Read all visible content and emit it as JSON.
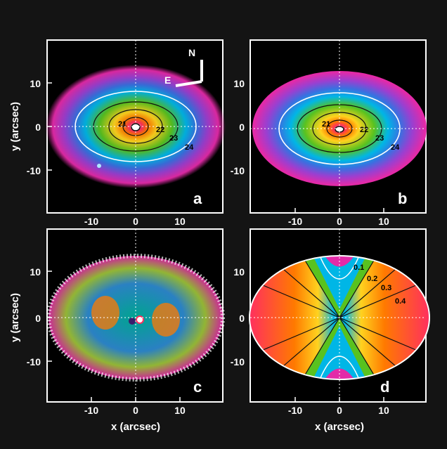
{
  "figure": {
    "x_axis_label": "x (arcsec)",
    "y_axis_label": "y (arcsec)",
    "tick_labels": [
      "-10",
      "0",
      "10"
    ],
    "compass": {
      "north": "N",
      "east": "E"
    },
    "colors": {
      "background": "#141414",
      "panel": "#000000",
      "text": "#ffffff",
      "contour_line": "#111111",
      "contour_white": "#ffffff",
      "crosshair": "#ffffff",
      "palette": [
        "#ff2f5f",
        "#ff7a00",
        "#ffd21f",
        "#59c21f",
        "#009a7a",
        "#00b6e6",
        "#3b6fe0",
        "#9b3fd0",
        "#e32aa8"
      ]
    },
    "panels": [
      {
        "id": "a",
        "letter": "a",
        "show_y_ticks": true,
        "show_x_ticks": false,
        "contour_labels": [
          "21",
          "22",
          "23",
          "24"
        ]
      },
      {
        "id": "b",
        "letter": "b",
        "show_y_ticks": false,
        "show_x_ticks": true,
        "contour_labels": [
          "21",
          "22",
          "23",
          "24"
        ]
      },
      {
        "id": "c",
        "letter": "c",
        "show_y_ticks": true,
        "show_x_ticks": true,
        "contour_labels": []
      },
      {
        "id": "d",
        "letter": "d",
        "show_y_ticks": false,
        "show_x_ticks": true,
        "contour_labels": [
          "0.1",
          "0.2",
          "0.3",
          "0.4"
        ]
      }
    ]
  }
}
